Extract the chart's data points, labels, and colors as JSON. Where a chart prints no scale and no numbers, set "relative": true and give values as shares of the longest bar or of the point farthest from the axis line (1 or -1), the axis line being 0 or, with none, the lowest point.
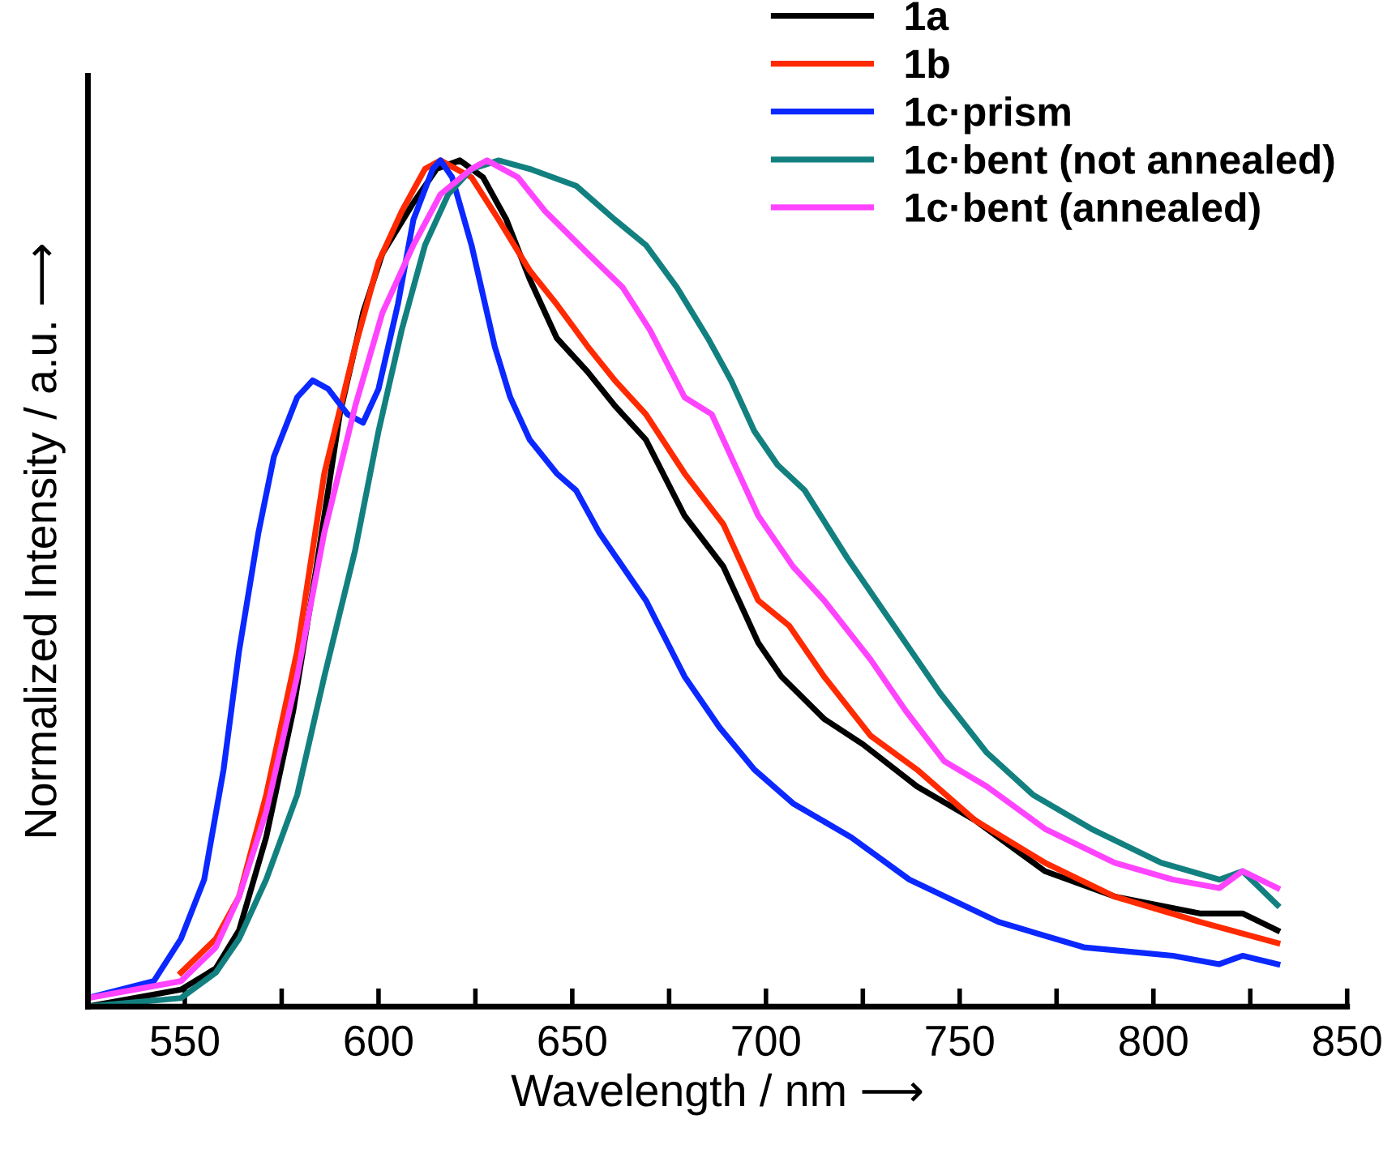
{
  "chart_data": {
    "type": "line",
    "relative": true,
    "xlabel": "Wavelength / nm ⟶",
    "ylabel": "Normalized Intensity / a.u. ⟶",
    "xlim": [
      525,
      850
    ],
    "xticks": [
      550,
      {
        "value": 575,
        "label": null
      },
      600,
      {
        "value": 625,
        "label": null
      },
      650,
      {
        "value": 675,
        "label": null
      },
      700,
      {
        "value": 725,
        "label": null
      },
      750,
      {
        "value": 775,
        "label": null
      },
      800,
      {
        "value": 825,
        "label": null
      },
      850
    ],
    "legend": "top right",
    "grid": false,
    "marker": "none",
    "line_style": "solid",
    "series": [
      {
        "name": "1a",
        "color": "#000000",
        "x": [
          525,
          549,
          558,
          564,
          571,
          578,
          584,
          590,
          596,
          601,
          609,
          615,
          621,
          627,
          633,
          639,
          646,
          654,
          661,
          669,
          679,
          689,
          698,
          704,
          715,
          725,
          739,
          754,
          772,
          790,
          812,
          823,
          832
        ],
        "values": [
          0.0,
          0.02,
          0.045,
          0.09,
          0.2,
          0.35,
          0.52,
          0.7,
          0.82,
          0.89,
          0.95,
          0.99,
          1.0,
          0.98,
          0.93,
          0.86,
          0.79,
          0.75,
          0.71,
          0.67,
          0.58,
          0.52,
          0.43,
          0.39,
          0.34,
          0.31,
          0.26,
          0.22,
          0.16,
          0.13,
          0.11,
          0.11,
          0.09
        ]
      },
      {
        "name": "1b",
        "color": "#ff2a00",
        "x": [
          549,
          558,
          564,
          571,
          579,
          586,
          594,
          600,
          606,
          612,
          616,
          624,
          631,
          639,
          646,
          654,
          661,
          669,
          679,
          689,
          698,
          706,
          715,
          727,
          739,
          754,
          772,
          790,
          812,
          832
        ],
        "values": [
          0.04,
          0.08,
          0.13,
          0.25,
          0.42,
          0.63,
          0.78,
          0.88,
          0.94,
          0.99,
          1.0,
          0.98,
          0.93,
          0.87,
          0.83,
          0.78,
          0.74,
          0.7,
          0.63,
          0.57,
          0.48,
          0.45,
          0.39,
          0.32,
          0.28,
          0.22,
          0.17,
          0.13,
          0.1,
          0.075
        ]
      },
      {
        "name": "1c·prism",
        "color": "#0a28ff",
        "x": [
          525,
          542,
          549,
          555,
          560,
          564,
          569,
          573,
          579,
          583,
          587,
          592,
          596,
          600,
          605,
          609,
          614,
          616,
          619,
          624,
          630,
          634,
          639,
          646,
          651,
          657,
          669,
          679,
          688,
          697,
          707,
          722,
          737,
          760,
          782,
          805,
          817,
          823,
          832
        ],
        "values": [
          0.01,
          0.03,
          0.08,
          0.15,
          0.28,
          0.42,
          0.56,
          0.65,
          0.72,
          0.74,
          0.73,
          0.7,
          0.69,
          0.73,
          0.83,
          0.93,
          0.99,
          1.0,
          0.98,
          0.9,
          0.78,
          0.72,
          0.67,
          0.63,
          0.61,
          0.56,
          0.48,
          0.39,
          0.33,
          0.28,
          0.24,
          0.2,
          0.15,
          0.1,
          0.07,
          0.06,
          0.05,
          0.06,
          0.05
        ]
      },
      {
        "name": "1c·bent (not annealed)",
        "color": "#138080",
        "x": [
          525,
          549,
          558,
          564,
          571,
          579,
          586,
          594,
          600,
          606,
          612,
          618,
          624,
          631,
          639,
          651,
          661,
          669,
          677,
          685,
          691,
          697,
          703,
          710,
          721,
          733,
          745,
          757,
          769,
          784,
          802,
          817,
          823,
          832
        ],
        "values": [
          0.0,
          0.01,
          0.04,
          0.08,
          0.15,
          0.25,
          0.39,
          0.54,
          0.68,
          0.8,
          0.9,
          0.96,
          0.99,
          1.0,
          0.99,
          0.97,
          0.93,
          0.9,
          0.85,
          0.79,
          0.74,
          0.68,
          0.64,
          0.61,
          0.53,
          0.45,
          0.37,
          0.3,
          0.25,
          0.21,
          0.17,
          0.15,
          0.16,
          0.12
        ]
      },
      {
        "name": "1c·bent (annealed)",
        "color": "#ff44ff",
        "x": [
          525,
          549,
          558,
          564,
          571,
          579,
          586,
          594,
          601,
          609,
          616,
          624,
          628,
          636,
          643,
          654,
          663,
          670,
          679,
          686,
          692,
          698,
          707,
          715,
          727,
          736,
          746,
          757,
          772,
          790,
          805,
          817,
          823,
          832
        ],
        "values": [
          0.01,
          0.03,
          0.07,
          0.13,
          0.23,
          0.39,
          0.56,
          0.71,
          0.82,
          0.9,
          0.96,
          0.99,
          1.0,
          0.98,
          0.94,
          0.89,
          0.85,
          0.8,
          0.72,
          0.7,
          0.64,
          0.58,
          0.52,
          0.48,
          0.41,
          0.35,
          0.29,
          0.26,
          0.21,
          0.17,
          0.15,
          0.14,
          0.16,
          0.14
        ]
      }
    ]
  }
}
